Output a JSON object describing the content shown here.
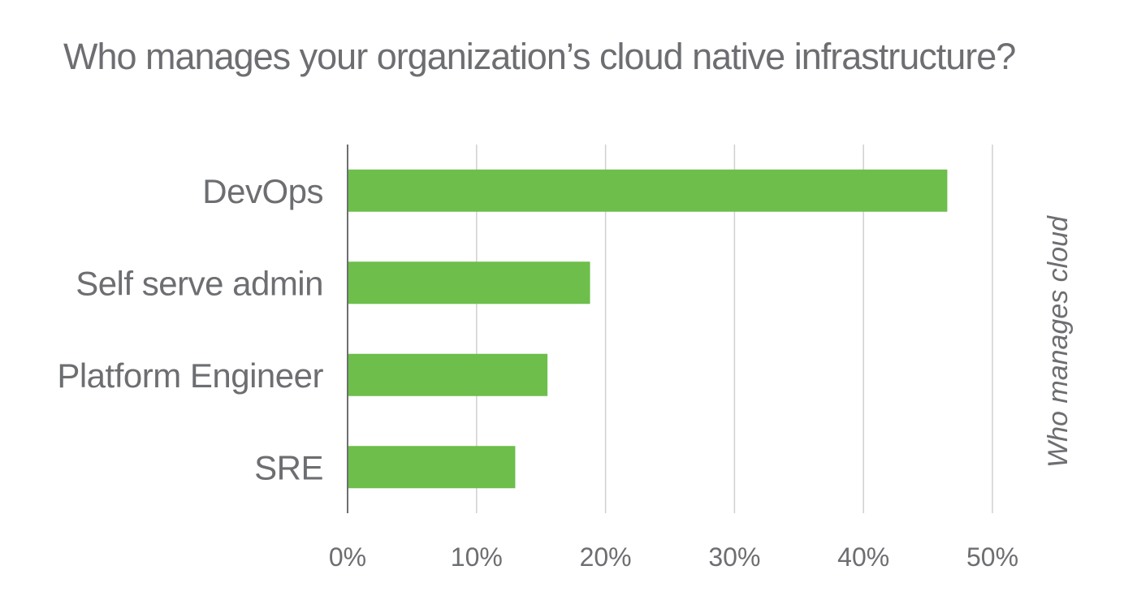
{
  "chart_data": {
    "type": "bar",
    "orientation": "horizontal",
    "title": "Who manages your organization’s cloud native infrastructure?",
    "categories": [
      "DevOps",
      "Self serve admin",
      "Platform Engineer",
      "SRE"
    ],
    "values": [
      46.5,
      18.8,
      15.5,
      13.0
    ],
    "ylabel": "Who manages cloud",
    "xlim": [
      0,
      50
    ],
    "xticks": [
      0,
      10,
      20,
      30,
      40,
      50
    ],
    "xtick_labels": [
      "0%",
      "10%",
      "20%",
      "30%",
      "40%",
      "50%"
    ],
    "grid": true,
    "legend": "none",
    "colors": {
      "bar": "#6dbe4b",
      "grid": "#d0d0d0",
      "axis": "#6d6e71",
      "text": "#6d6e71"
    }
  }
}
